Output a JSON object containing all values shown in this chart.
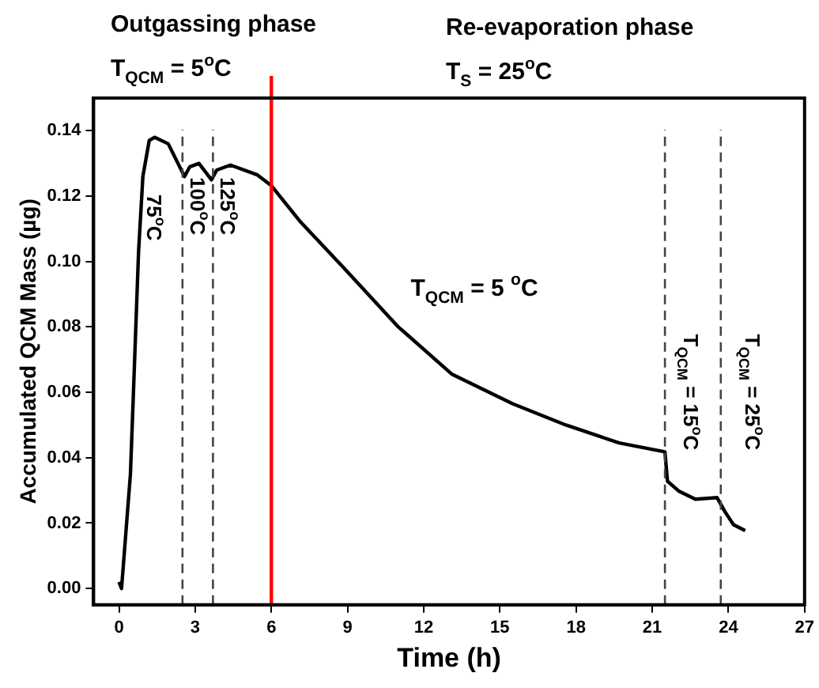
{
  "chart_data": {
    "type": "line",
    "xlabel": "Time (h)",
    "ylabel": "Accumulated QCM Mass (µg)",
    "xlim": [
      -1,
      27
    ],
    "xticks": [
      0,
      3,
      6,
      9,
      12,
      15,
      18,
      21,
      24,
      27
    ],
    "ylim": [
      -0.005,
      0.15
    ],
    "yticks": [
      {
        "value": 0,
        "label": "0.00"
      },
      0.02,
      0.04,
      0.06,
      0.08,
      {
        "value": 0.1,
        "label": "0.10"
      },
      0.12,
      0.14
    ],
    "grid": false,
    "legend": false,
    "marker": "none",
    "line_style": "solid",
    "series": [
      {
        "color": "#000000",
        "x": [
          0,
          0.1,
          0.2,
          0.3,
          0.45,
          0.55,
          0.77,
          0.94,
          1.19,
          1.4,
          1.94,
          2.58,
          2.79,
          3.15,
          3.64,
          3.85,
          4.39,
          5.45,
          5.99,
          7.16,
          8.86,
          11.0,
          13.1,
          15.5,
          17.6,
          19.7,
          21.5,
          21.6,
          22.06,
          22.7,
          23.55,
          23.87,
          24.2,
          24.66
        ],
        "values": [
          0.002,
          0.0,
          0.01,
          0.02,
          0.035,
          0.056,
          0.103,
          0.126,
          0.137,
          0.138,
          0.136,
          0.126,
          0.129,
          0.13,
          0.125,
          0.128,
          0.1295,
          0.1265,
          0.1233,
          0.112,
          0.098,
          0.08,
          0.0656,
          0.0565,
          0.05,
          0.0445,
          0.0418,
          0.0328,
          0.0297,
          0.0273,
          0.0278,
          0.0234,
          0.0195,
          0.0177
        ]
      }
    ],
    "ref_lines": [
      {
        "axis": "x",
        "value": 2.5,
        "label": "100$^{o}$C",
        "color": "#444444",
        "line_style": "dashed"
      },
      {
        "axis": "x",
        "value": 3.7,
        "label": "125$^{o}$C",
        "color": "#444444",
        "line_style": "dashed"
      },
      {
        "axis": "x",
        "value": 6,
        "label": null,
        "color": "#ff0000",
        "line_style": "solid"
      },
      {
        "axis": "x",
        "value": 21.5,
        "label": null,
        "color": "#444444",
        "line_style": "dashed"
      },
      {
        "axis": "x",
        "value": 23.7,
        "label": null,
        "color": "#444444",
        "line_style": "dashed"
      }
    ],
    "annotations": [
      "Outgassing phase",
      "T$_{QCM}$ = 5$^{o}$C",
      "Re-evaporation phase",
      "T$_{S}$ = 25$^{o}$C",
      "T$_{QCM}$ = 5 $^{o}$C",
      "75$^{o}$C",
      "T$_{QCM}$ = 15$^{o}$C",
      "T$_{QCM}$ = 25$^{o}$C"
    ]
  }
}
